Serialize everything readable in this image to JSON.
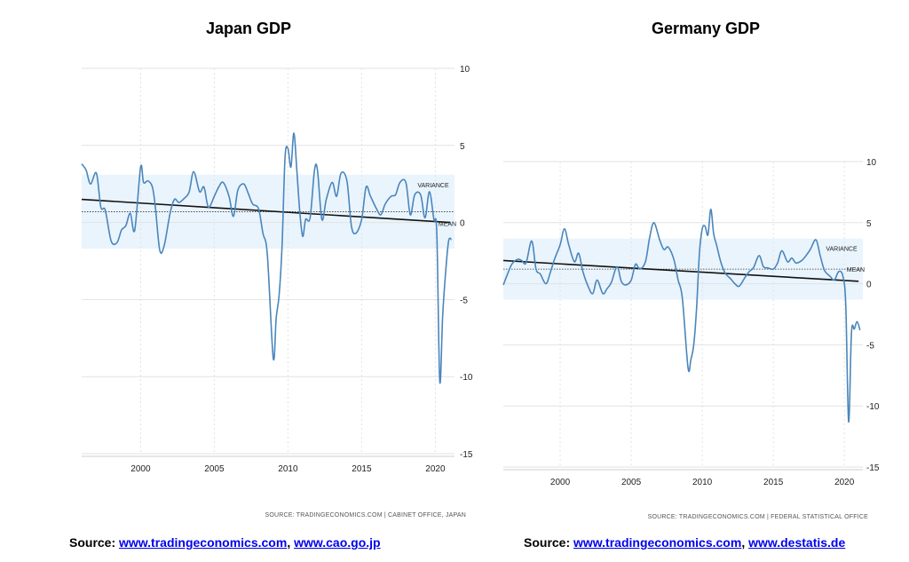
{
  "charts": [
    {
      "title": "Japan GDP",
      "source_note": "SOURCE: TRADINGECONOMICS.COM | CABINET OFFICE, JAPAN",
      "source_caption": {
        "prefix": "Source: ",
        "link1": "www.tradingeconomics.com",
        "sep": ", ",
        "link2": "www.cao.go.jp"
      }
    },
    {
      "title": "Germany GDP",
      "source_note": "SOURCE: TRADINGECONOMICS.COM | FEDERAL STATISTICAL OFFICE",
      "source_caption": {
        "prefix": "Source: ",
        "link1": "www.tradingeconomics.com",
        "sep": ", ",
        "link2": "www.destatis.de"
      }
    }
  ],
  "colors": {
    "line": "#4a86bb",
    "band": "#eaf4fd",
    "trend": "#111111",
    "grid": "#e2e2e2"
  },
  "chart_data": [
    {
      "type": "line",
      "title": "Japan GDP",
      "xlim": [
        1996,
        2021.3
      ],
      "ylim": [
        -15,
        10
      ],
      "xticks": [
        2000,
        2005,
        2010,
        2015,
        2020
      ],
      "yticks": [
        10,
        5,
        0,
        -5,
        -10,
        -15
      ],
      "variance_band": [
        -1.7,
        3.1
      ],
      "mean": 0.7,
      "trend": [
        [
          1996,
          1.5
        ],
        [
          2021,
          0.0
        ]
      ],
      "annotations": [
        "VARIANCE",
        "MEAN"
      ],
      "grid": true,
      "series": [
        {
          "x": [
            1996,
            1996.3,
            1996.6,
            1997,
            1997.3,
            1997.6,
            1998,
            1998.4,
            1998.7,
            1999,
            1999.3,
            1999.6,
            2000,
            2000.2,
            2000.5,
            2000.8,
            2001,
            2001.3,
            2001.6,
            2002,
            2002.3,
            2002.6,
            2003,
            2003.3,
            2003.6,
            2004,
            2004.3,
            2004.6,
            2005,
            2005.3,
            2005.6,
            2006,
            2006.3,
            2006.6,
            2007,
            2007.3,
            2007.6,
            2008,
            2008.3,
            2008.6,
            2009,
            2009.2,
            2009.4,
            2009.6,
            2009.8,
            2010,
            2010.2,
            2010.4,
            2010.6,
            2010.8,
            2011,
            2011.2,
            2011.5,
            2011.8,
            2012,
            2012.3,
            2012.6,
            2013,
            2013.3,
            2013.6,
            2014,
            2014.3,
            2014.6,
            2015,
            2015.3,
            2015.6,
            2016,
            2016.3,
            2016.6,
            2017,
            2017.3,
            2017.6,
            2018,
            2018.3,
            2018.6,
            2019,
            2019.3,
            2019.6,
            2019.9,
            2020.1,
            2020.3,
            2020.5,
            2020.7,
            2020.9,
            2021.1
          ],
          "values": [
            3.8,
            3.4,
            2.5,
            3.2,
            1.0,
            0.8,
            -1.2,
            -1.3,
            -0.5,
            -0.2,
            0.6,
            -0.5,
            3.6,
            2.6,
            2.7,
            2.3,
            1.0,
            -1.8,
            -1.5,
            0.6,
            1.5,
            1.3,
            1.6,
            2.0,
            3.3,
            2.0,
            2.3,
            1.0,
            1.7,
            2.3,
            2.6,
            1.7,
            0.4,
            2.1,
            2.5,
            1.9,
            1.2,
            0.9,
            -0.7,
            -2.1,
            -8.8,
            -6.2,
            -4.7,
            -1.5,
            4.2,
            4.8,
            3.6,
            5.8,
            3.4,
            0.7,
            -0.9,
            0.2,
            0.3,
            3.4,
            3.4,
            0.2,
            1.5,
            2.6,
            1.7,
            3.2,
            2.7,
            -0.2,
            -0.7,
            0.2,
            2.3,
            1.7,
            0.9,
            0.5,
            1.2,
            1.7,
            1.8,
            2.6,
            2.6,
            0.5,
            1.8,
            1.8,
            0.3,
            2.0,
            0.2,
            -0.7,
            -10.3,
            -6.0,
            -3.2,
            -1.2,
            -1.1
          ]
        }
      ]
    },
    {
      "type": "line",
      "title": "Germany GDP",
      "xlim": [
        1996,
        2021.3
      ],
      "ylim": [
        -15,
        10
      ],
      "xticks": [
        2000,
        2005,
        2010,
        2015,
        2020
      ],
      "yticks": [
        10,
        5,
        0,
        -5,
        -10,
        -15
      ],
      "variance_band": [
        -1.3,
        3.7
      ],
      "mean": 1.2,
      "trend": [
        [
          1996,
          1.9
        ],
        [
          2021,
          0.2
        ]
      ],
      "annotations": [
        "VARIANCE",
        "MEAN"
      ],
      "grid": true,
      "series": [
        {
          "x": [
            1996,
            1996.3,
            1996.6,
            1997,
            1997.3,
            1997.6,
            1998,
            1998.3,
            1998.6,
            1999,
            1999.3,
            1999.6,
            2000,
            2000.3,
            2000.6,
            2001,
            2001.3,
            2001.6,
            2002,
            2002.3,
            2002.6,
            2003,
            2003.3,
            2003.6,
            2004,
            2004.3,
            2004.6,
            2005,
            2005.3,
            2005.6,
            2006,
            2006.3,
            2006.6,
            2007,
            2007.3,
            2007.6,
            2008,
            2008.3,
            2008.6,
            2009,
            2009.2,
            2009.4,
            2009.6,
            2009.8,
            2010,
            2010.2,
            2010.4,
            2010.6,
            2010.8,
            2011,
            2011.3,
            2011.6,
            2012,
            2012.3,
            2012.6,
            2013,
            2013.3,
            2013.6,
            2014,
            2014.3,
            2014.6,
            2015,
            2015.3,
            2015.6,
            2016,
            2016.3,
            2016.6,
            2017,
            2017.3,
            2017.6,
            2018,
            2018.3,
            2018.6,
            2019,
            2019.3,
            2019.6,
            2019.9,
            2020.1,
            2020.3,
            2020.5,
            2020.7,
            2020.9,
            2021.1
          ],
          "values": [
            -0.1,
            0.8,
            1.6,
            2.0,
            1.9,
            1.7,
            3.5,
            1.2,
            0.8,
            0.0,
            0.9,
            2.0,
            3.2,
            4.5,
            3.2,
            1.8,
            2.5,
            1.0,
            -0.3,
            -0.8,
            0.3,
            -0.8,
            -0.4,
            0.1,
            1.4,
            0.2,
            -0.1,
            0.3,
            1.6,
            1.2,
            1.8,
            3.8,
            5.0,
            3.6,
            2.8,
            3.0,
            2.0,
            0.3,
            -1.2,
            -6.9,
            -6.2,
            -5.0,
            -2.0,
            2.5,
            4.5,
            4.7,
            4.0,
            6.1,
            4.1,
            3.2,
            1.8,
            0.9,
            0.4,
            0.0,
            -0.2,
            0.5,
            1.0,
            1.3,
            2.3,
            1.4,
            1.3,
            1.2,
            1.7,
            2.7,
            1.8,
            2.1,
            1.7,
            1.9,
            2.3,
            2.8,
            3.6,
            2.3,
            1.1,
            0.6,
            0.3,
            1.0,
            0.6,
            -1.8,
            -11.3,
            -4.0,
            -3.7,
            -3.1,
            -3.8
          ]
        }
      ]
    }
  ]
}
